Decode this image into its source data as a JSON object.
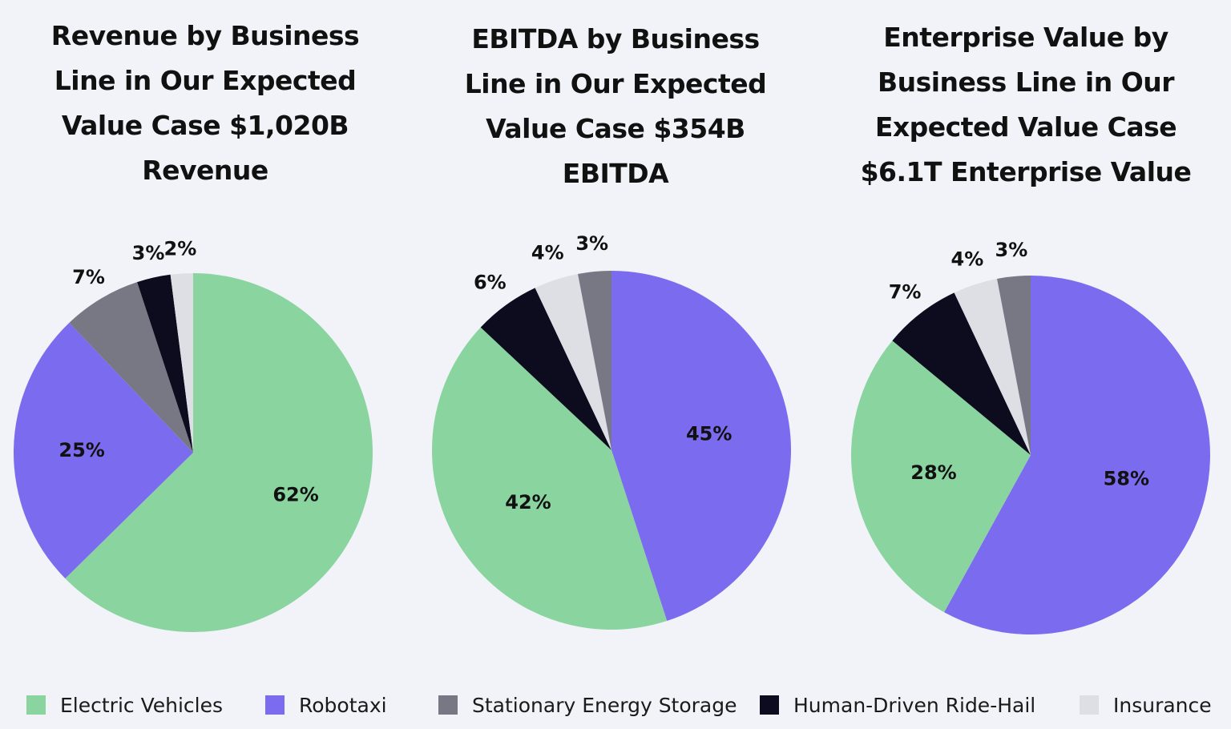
{
  "legend": [
    {
      "name": "Electric Vehicles",
      "color": "#8ad4a0"
    },
    {
      "name": "Robotaxi",
      "color": "#7b6bee"
    },
    {
      "name": "Stationary Energy Storage",
      "color": "#777884"
    },
    {
      "name": "Human-Driven Ride-Hail",
      "color": "#0c0c1e"
    },
    {
      "name": "Insurance",
      "color": "#dddfe5"
    }
  ],
  "chart_data": [
    {
      "type": "pie",
      "title_lines": [
        "Revenue by Business",
        "Line in Our Expected",
        "Value Case $1,020B",
        "Revenue"
      ],
      "slices": [
        {
          "category": "Electric Vehicles",
          "value": 62,
          "label": "62%"
        },
        {
          "category": "Robotaxi",
          "value": 25,
          "label": "25%"
        },
        {
          "category": "Stationary Energy Storage",
          "value": 7,
          "label": "7%"
        },
        {
          "category": "Human-Driven Ride-Hail",
          "value": 3,
          "label": "3%"
        },
        {
          "category": "Insurance",
          "value": 2,
          "label": "2%"
        }
      ]
    },
    {
      "type": "pie",
      "title_lines": [
        "EBITDA by Business",
        "Line in Our Expected",
        "Value Case $354B",
        "EBITDA"
      ],
      "slices": [
        {
          "category": "Robotaxi",
          "value": 45,
          "label": "45%"
        },
        {
          "category": "Electric Vehicles",
          "value": 42,
          "label": "42%"
        },
        {
          "category": "Human-Driven Ride-Hail",
          "value": 6,
          "label": "6%"
        },
        {
          "category": "Insurance",
          "value": 4,
          "label": "4%"
        },
        {
          "category": "Stationary Energy Storage",
          "value": 3,
          "label": "3%"
        }
      ]
    },
    {
      "type": "pie",
      "title_lines": [
        "Enterprise Value by",
        "Business Line in Our",
        "Expected Value Case",
        "$6.1T Enterprise Value"
      ],
      "slices": [
        {
          "category": "Robotaxi",
          "value": 58,
          "label": "58%"
        },
        {
          "category": "Electric Vehicles",
          "value": 28,
          "label": "28%"
        },
        {
          "category": "Human-Driven Ride-Hail",
          "value": 7,
          "label": "7%"
        },
        {
          "category": "Insurance",
          "value": 4,
          "label": "4%"
        },
        {
          "category": "Stationary Energy Storage",
          "value": 3,
          "label": "3%"
        }
      ]
    }
  ]
}
